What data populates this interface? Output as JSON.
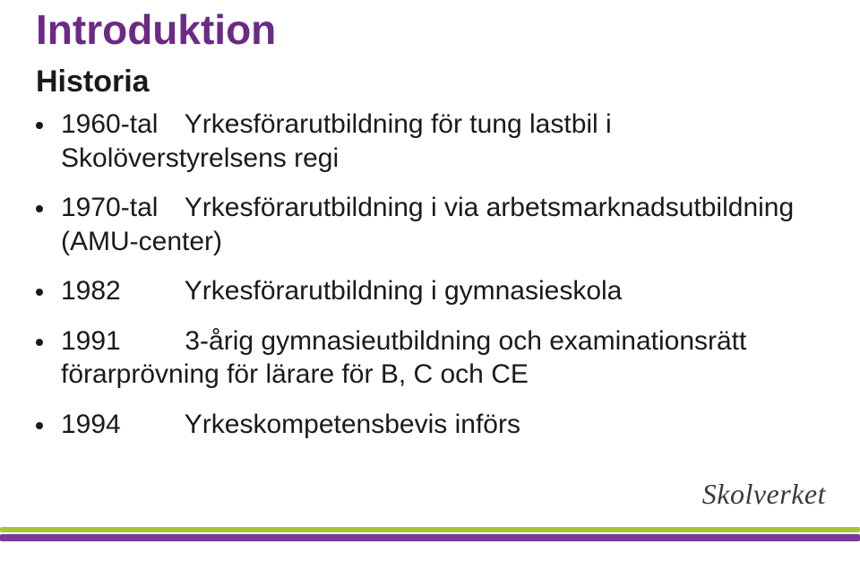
{
  "colors": {
    "title": "#6b2a86",
    "text": "#1a1a1a",
    "bullet_dot": "#1a1a1a",
    "logo": "#3a3a3a",
    "bar_top": "#a7c539",
    "bar_bottom": "#7a3a96"
  },
  "title": "Introduktion",
  "subtitle": "Historia",
  "bullets": [
    {
      "year": "1960-tal",
      "text": "Yrkesförarutbildning för tung lastbil i Skolöverstyrelsens regi"
    },
    {
      "year": "1970-tal",
      "text": "Yrkesförarutbildning i via arbetsmarknadsutbildning (AMU-center)"
    },
    {
      "year": "1982",
      "text": "Yrkesförarutbildning i gymnasieskola"
    },
    {
      "year": "1991",
      "text": "3-årig gymnasieutbildning och examinationsrätt förarprövning för lärare för B, C och CE"
    },
    {
      "year": "1994",
      "text": "Yrkeskompetensbevis införs"
    }
  ],
  "logo": "Skolverket"
}
